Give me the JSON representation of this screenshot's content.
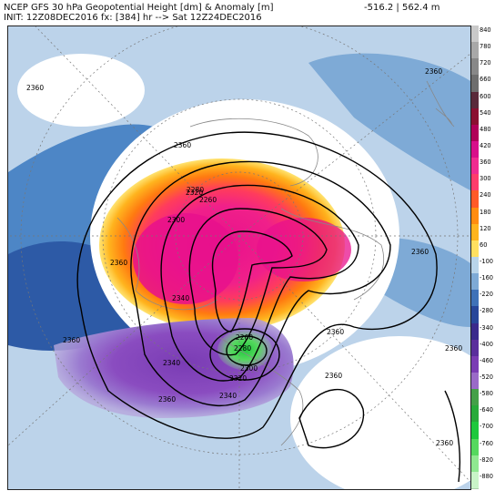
{
  "header": {
    "title": "NCEP GFS 30 hPa Geopotential Height [dm] & Anomaly [m]",
    "init": "INIT: 12Z08DEC2016 fx: [384] hr --> Sat 12Z24DEC2016",
    "range": "-516.2 | 562.4 m"
  },
  "map": {
    "region": "Northern Hemisphere polar stereographic",
    "contour_labels": [
      "2360",
      "2360",
      "2360",
      "2360",
      "2360",
      "2360",
      "2360",
      "2360",
      "2360",
      "2360",
      "2340",
      "2320",
      "2300",
      "2280",
      "2260",
      "2260",
      "2280",
      "2300",
      "2320",
      "2340",
      "2340",
      "2360"
    ],
    "features": {
      "positive_anomaly_color": "#e8108c",
      "negative_anomaly_color": "#7a3cb4",
      "low_center_color": "#3db43c"
    }
  },
  "legend": {
    "levels": [
      "840",
      "780",
      "720",
      "660",
      "600",
      "540",
      "480",
      "420",
      "360",
      "300",
      "240",
      "180",
      "120",
      "60",
      "-100",
      "-160",
      "-220",
      "-280",
      "-340",
      "-400",
      "-460",
      "-520",
      "-580",
      "-640",
      "-700",
      "-760",
      "-820",
      "-880"
    ],
    "colors": [
      "#c9c9c9",
      "#a8a8a8",
      "#888888",
      "#6e6e6e",
      "#5a2a3a",
      "#8a1030",
      "#b00058",
      "#d8108a",
      "#f02c90",
      "#ff3c6c",
      "#ff5a28",
      "#ff8c10",
      "#ffb41e",
      "#ffe060",
      "#b8d4ea",
      "#7eaad6",
      "#3f72b8",
      "#27469a",
      "#3a2a8c",
      "#5a2e9c",
      "#7a3cb4",
      "#9a6ac8",
      "#44a048",
      "#28aa3a",
      "#1ec83c",
      "#55d85e",
      "#8fe890",
      "#c9f4c8"
    ]
  }
}
